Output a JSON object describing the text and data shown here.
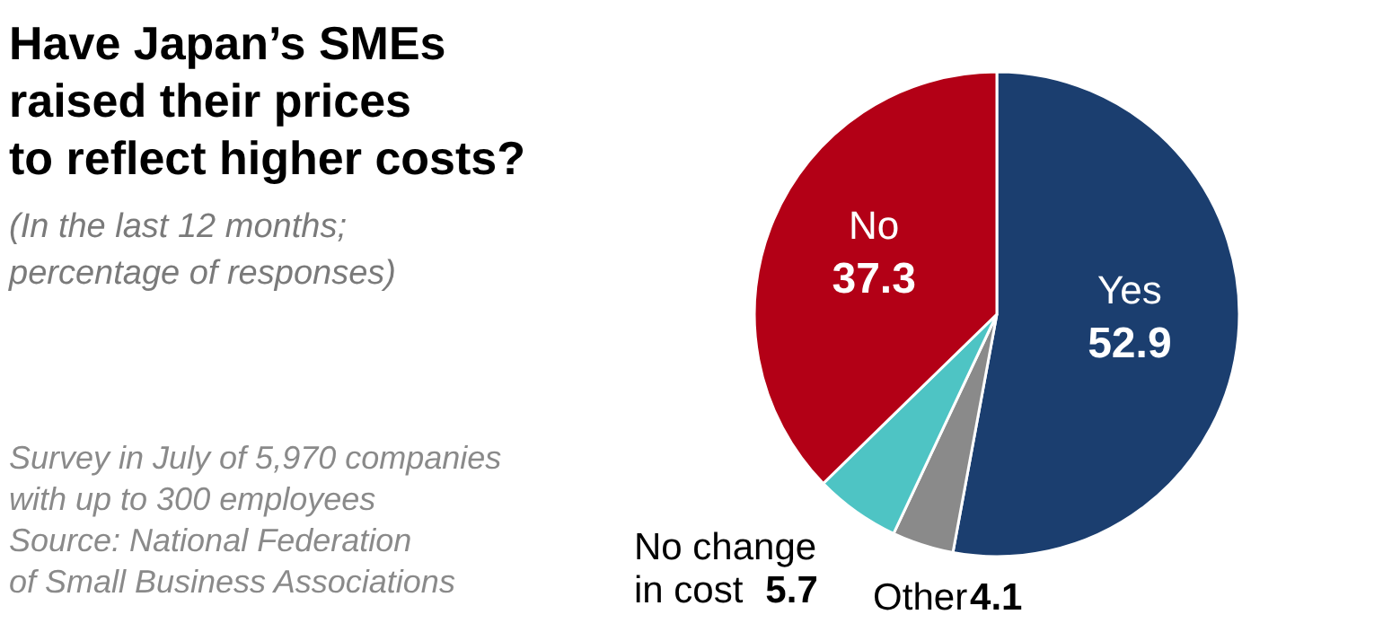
{
  "chart_data": {
    "type": "pie",
    "title": "Have Japan’s SMEs\nraised their prices\nto reflect higher costs?",
    "subtitle": "(In the last 12 months;\npercentage of responses)",
    "annotations": [
      "Survey in July of 5,970 companies\nwith up to 300 employees",
      "Source: National Federation\nof Small Business Associations"
    ],
    "categories": [
      "Yes",
      "Other",
      "No change\nin cost",
      "No"
    ],
    "values": [
      52.9,
      4.1,
      5.7,
      37.3
    ],
    "colors": [
      "#1b3e6f",
      "#8a8a8a",
      "#4ec4c4",
      "#b30016"
    ],
    "data_labels": true
  }
}
